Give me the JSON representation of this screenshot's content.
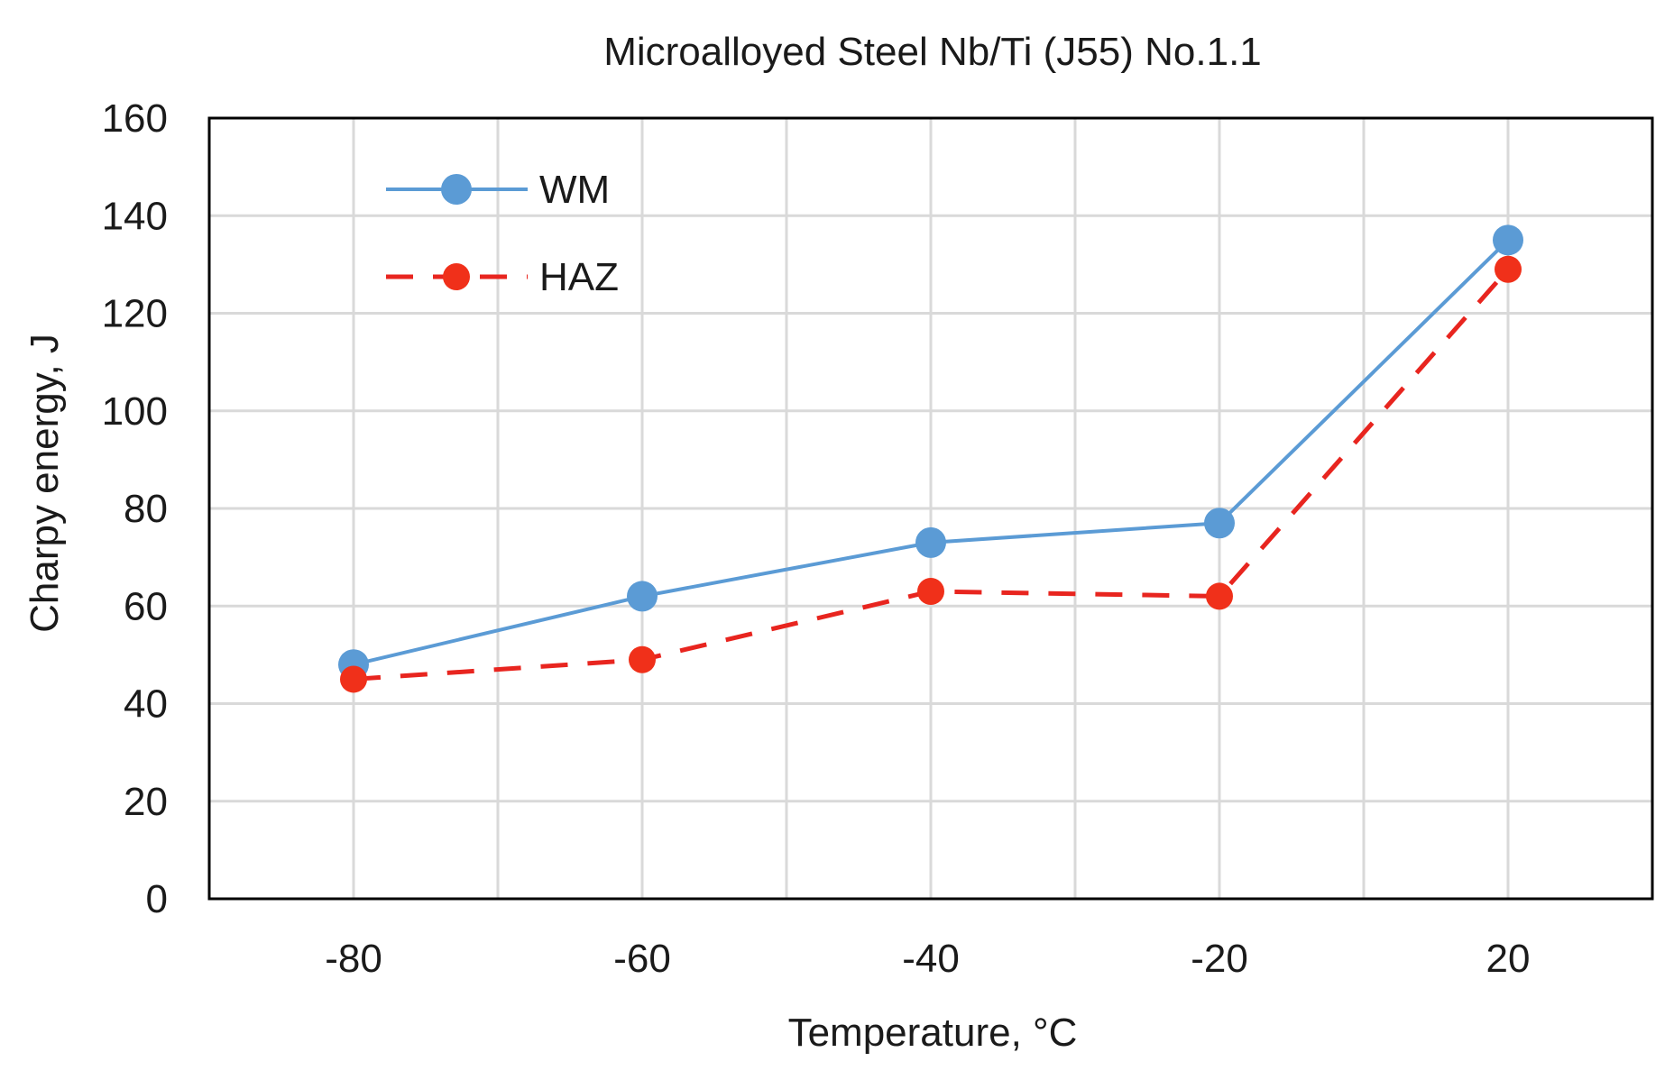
{
  "chart_data": {
    "type": "line",
    "title": "Microalloyed Steel Nb/Ti (J55) No.1.1",
    "xlabel": "Temperature, °C",
    "ylabel": "Charpy energy, J",
    "categories": [
      "-80",
      "-60",
      "-40",
      "-20",
      "20"
    ],
    "ylim": [
      0,
      160
    ],
    "yticks": [
      0,
      20,
      40,
      60,
      80,
      100,
      120,
      140,
      160
    ],
    "grid": true,
    "legend_position": "top-left",
    "series": [
      {
        "name": "WM",
        "values": [
          48,
          62,
          73,
          77,
          135
        ],
        "color": "#5b9bd5",
        "line_style": "solid",
        "marker_color": "#5b9bd5"
      },
      {
        "name": "HAZ",
        "values": [
          45,
          49,
          63,
          62,
          129
        ],
        "color": "#e8251f",
        "line_style": "dashed",
        "marker_color": "#f0301a"
      }
    ]
  }
}
